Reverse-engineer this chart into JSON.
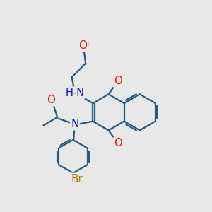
{
  "background_color": "#e8e8e8",
  "bond_color": "#2a5a7a",
  "bond_width": 1.6,
  "atom_colors": {
    "O": "#ee1111",
    "N": "#1111cc",
    "Br": "#bb7700",
    "H": "#337777",
    "C": "#2a5a7a"
  },
  "font_size": 11
}
